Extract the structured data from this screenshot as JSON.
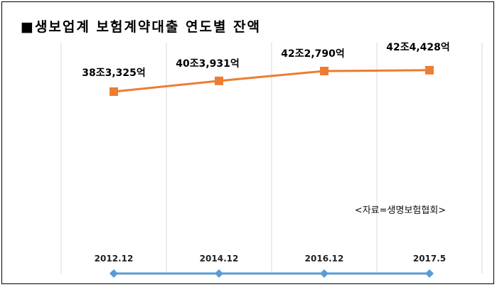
{
  "colors": {
    "line": "#ED7D31",
    "axis": "#5B9BD5",
    "grid": "#D9D9D9"
  },
  "chart_data": {
    "type": "line",
    "title": "■생보업계 보험계약대출 연도별 잔액",
    "source": "<자료=생명보험협회>",
    "categories": [
      "2012.12",
      "2014.12",
      "2016.12",
      "2017.5"
    ],
    "series": [
      {
        "values": [
          383325,
          403931,
          422790,
          424428
        ],
        "labels": [
          "38조3,325억",
          "40조3,931억",
          "42조2,790억",
          "42조4,428억"
        ]
      }
    ],
    "unit": "억원",
    "grid": true,
    "ylim": [
      0,
      440000
    ]
  }
}
